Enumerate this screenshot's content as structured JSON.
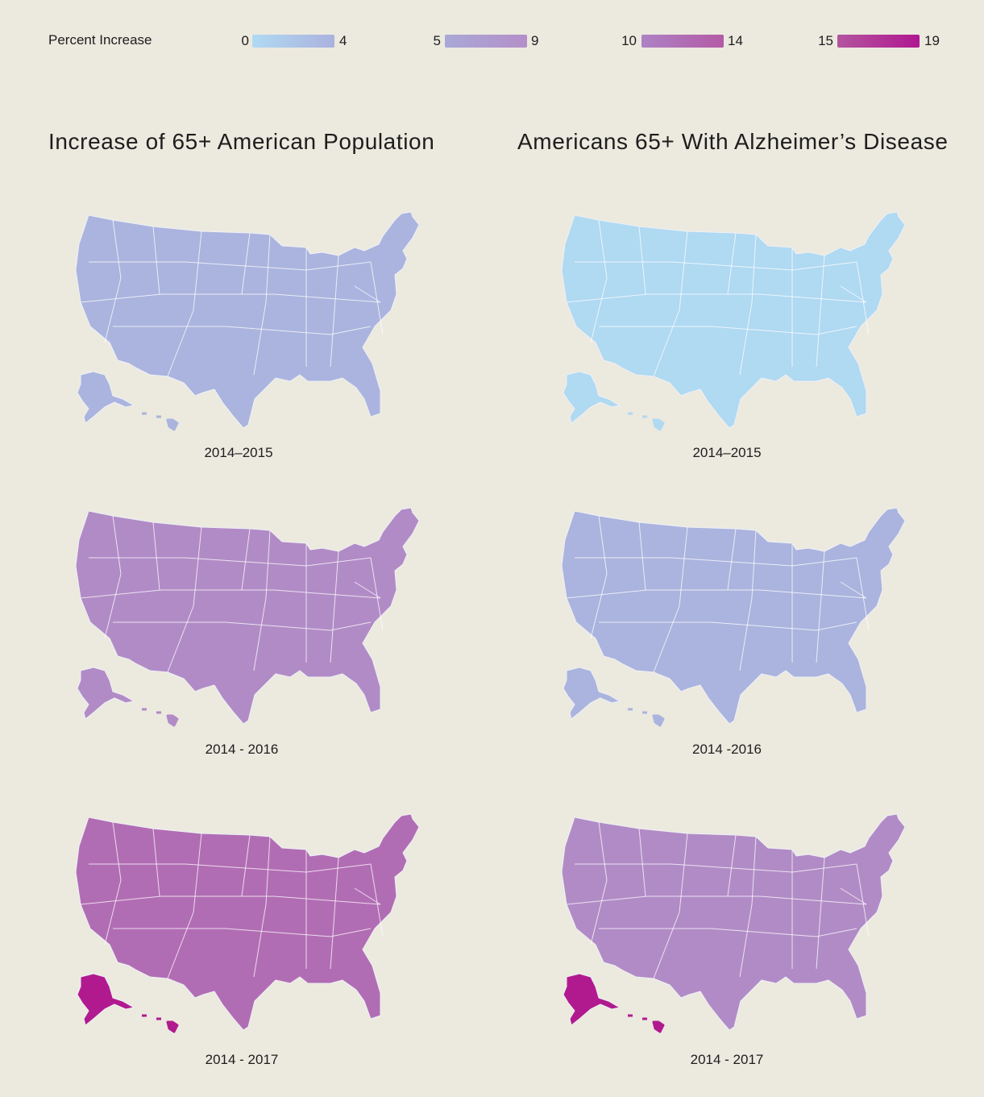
{
  "legend": {
    "title": "Percent Increase",
    "bins": [
      {
        "min": "0",
        "max": "4",
        "from": "#b0d9f2",
        "to": "#aab2de"
      },
      {
        "min": "5",
        "max": "9",
        "from": "#a9a8d6",
        "to": "#b48fc9"
      },
      {
        "min": "10",
        "max": "14",
        "from": "#ad82c4",
        "to": "#b45aa6"
      },
      {
        "min": "15",
        "max": "19",
        "from": "#b3549f",
        "to": "#b01890"
      }
    ]
  },
  "colors": {
    "background": "#ece9df",
    "bin_0_4_light": "#b0d9f2",
    "bin_0_4": "#aab4de",
    "bin_5_9": "#aea3d3",
    "bin_5_9_dark": "#b18bc6",
    "bin_10_14": "#b16db4",
    "bin_15_19": "#b11a8f"
  },
  "columns": [
    {
      "title": "Increase of 65+ American Population",
      "maps": [
        {
          "period": "2014–2015",
          "base": "bin_0_4",
          "highlights": []
        },
        {
          "period": "2014 - 2016",
          "base": "bin_5_9_dark",
          "highlights": []
        },
        {
          "period": "2014 - 2017",
          "base": "bin_10_14",
          "highlights": [
            "alaska:bin_15_19"
          ]
        }
      ]
    },
    {
      "title": "Americans 65+ With Alzheimer’s Disease",
      "maps": [
        {
          "period": "2014–2015",
          "base": "bin_0_4_light",
          "highlights": []
        },
        {
          "period": "2014 -2016",
          "base": "bin_0_4",
          "highlights": []
        },
        {
          "period": "2014 - 2017",
          "base": "bin_5_9_dark",
          "highlights": [
            "alaska:bin_15_19"
          ]
        }
      ]
    }
  ]
}
